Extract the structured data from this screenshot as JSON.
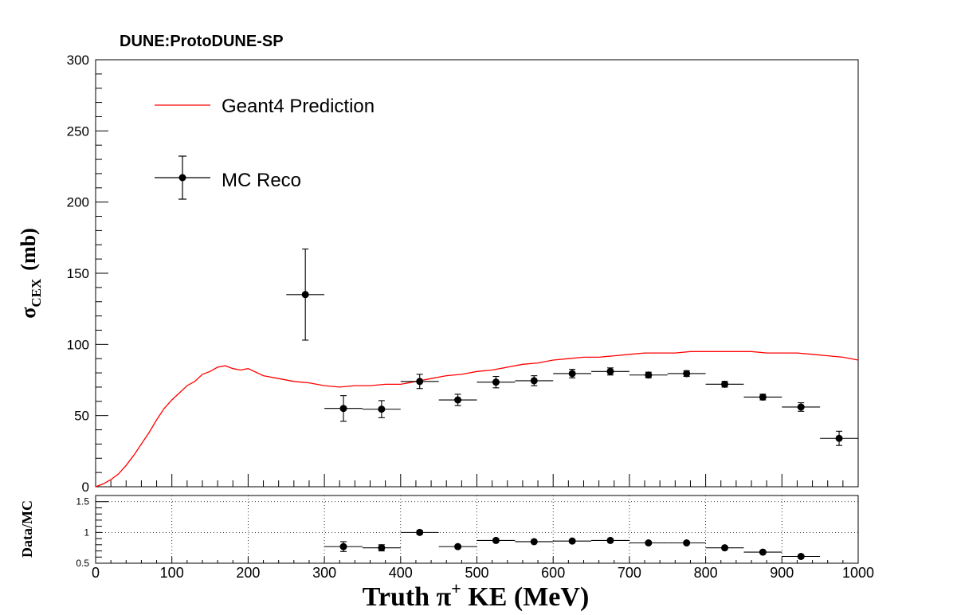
{
  "header": {
    "experiment_label": "DUNE:ProtoDUNE-SP"
  },
  "chart_data": [
    {
      "type": "line",
      "panel": "main",
      "ylabel_main": "σ",
      "ylabel_sub": "CEX",
      "ylabel_unit": "(mb)",
      "xlim": [
        0,
        1000
      ],
      "ylim": [
        0,
        300
      ],
      "yticks": [
        0,
        50,
        100,
        150,
        200,
        250,
        300
      ],
      "legend_position": "top-left",
      "colors": {
        "prediction": "#ff0000",
        "data": "#000000",
        "axes": "#000000"
      },
      "prediction": {
        "name": "Geant4 Prediction",
        "x": [
          0,
          10,
          20,
          30,
          40,
          50,
          60,
          70,
          80,
          90,
          100,
          110,
          120,
          130,
          140,
          150,
          160,
          170,
          180,
          190,
          200,
          220,
          240,
          260,
          280,
          300,
          320,
          340,
          360,
          380,
          400,
          420,
          440,
          460,
          480,
          500,
          520,
          540,
          560,
          580,
          600,
          620,
          640,
          660,
          680,
          700,
          720,
          740,
          760,
          780,
          800,
          820,
          840,
          860,
          880,
          900,
          920,
          940,
          960,
          980,
          1000
        ],
        "y": [
          0,
          2,
          5,
          9,
          15,
          22,
          30,
          38,
          47,
          55,
          61,
          66,
          71,
          74,
          79,
          81,
          84,
          85,
          83,
          82,
          83,
          78,
          76,
          74,
          73,
          71,
          70,
          71,
          71,
          72,
          72,
          74,
          76,
          78,
          79,
          81,
          82,
          84,
          86,
          87,
          89,
          90,
          91,
          91,
          92,
          93,
          94,
          94,
          94,
          95,
          95,
          95,
          95,
          95,
          94,
          94,
          94,
          93,
          92,
          91,
          89
        ]
      },
      "measurement": {
        "name": "MC Reco",
        "x": [
          275,
          325,
          375,
          425,
          475,
          525,
          575,
          625,
          675,
          725,
          775,
          825,
          875,
          925,
          975
        ],
        "y": [
          135,
          55,
          54.5,
          74,
          61,
          73.5,
          74.5,
          79.5,
          81,
          78.5,
          79.5,
          72,
          63,
          56,
          34
        ],
        "x_err": [
          25,
          25,
          25,
          25,
          25,
          25,
          25,
          25,
          25,
          25,
          25,
          25,
          25,
          25,
          25
        ],
        "y_err": [
          32,
          9,
          6,
          5,
          4,
          4,
          3.5,
          3,
          2.5,
          2,
          2,
          2,
          2,
          3,
          5
        ]
      }
    },
    {
      "type": "scatter",
      "panel": "ratio",
      "xlabel": "Truth  π⁺ KE (MeV)",
      "xlabel_prefix": "Truth  π",
      "xlabel_sup": "+",
      "xlabel_suffix": " KE (MeV)",
      "ylabel": "Data/MC",
      "xlim": [
        0,
        1000
      ],
      "ylim": [
        0.5,
        1.6
      ],
      "xticks": [
        0,
        100,
        200,
        300,
        400,
        500,
        600,
        700,
        800,
        900,
        1000
      ],
      "yticks": [
        0.5,
        1,
        1.5
      ],
      "grid": true,
      "series": [
        {
          "x": [
            325,
            375,
            425,
            475,
            525,
            575,
            625,
            675,
            725,
            775,
            825,
            875,
            925
          ],
          "y": [
            0.77,
            0.75,
            1.0,
            0.77,
            0.87,
            0.85,
            0.86,
            0.87,
            0.83,
            0.83,
            0.75,
            0.68,
            0.61
          ],
          "x_err": [
            25,
            25,
            25,
            25,
            25,
            25,
            25,
            25,
            25,
            25,
            25,
            25,
            25
          ],
          "y_err": [
            0.08,
            0.05,
            0.03,
            0.02,
            0.02,
            0.02,
            0.02,
            0.02,
            0.02,
            0.02,
            0.02,
            0.02,
            0.02
          ]
        }
      ]
    }
  ]
}
